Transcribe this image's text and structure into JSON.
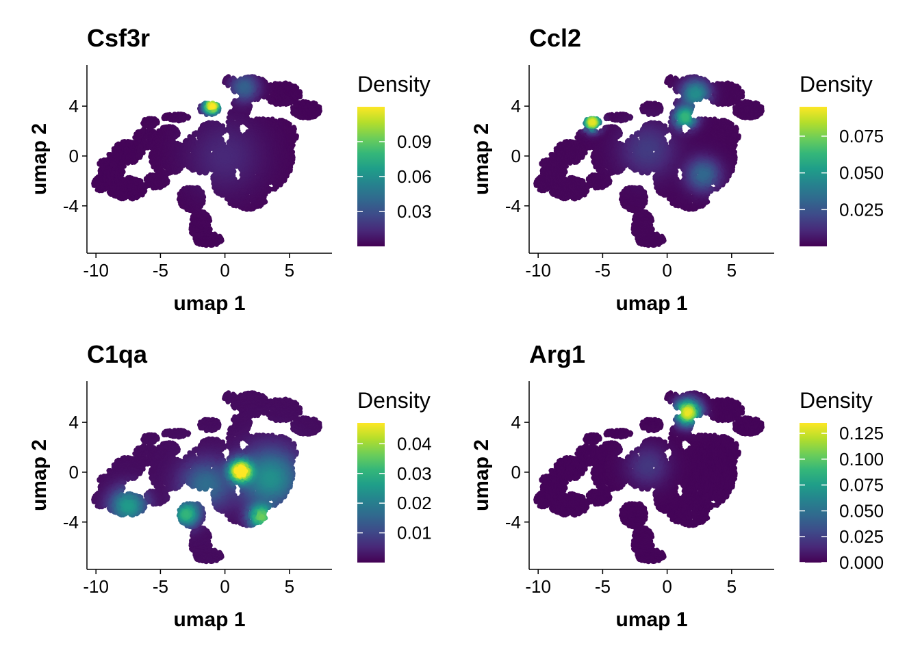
{
  "colors": {
    "viridis": [
      "#440154",
      "#482878",
      "#3e4a89",
      "#31688e",
      "#26828e",
      "#1f9e89",
      "#35b779",
      "#6ece58",
      "#b5de2b",
      "#fde725"
    ],
    "axis": "#000000"
  },
  "chart_data": [
    {
      "type": "scatter",
      "title": "Csf3r",
      "xlabel": "umap 1",
      "ylabel": "umap 2",
      "xlim": [
        -10.7,
        8.3
      ],
      "ylim": [
        -7.8,
        7.3
      ],
      "xticks": [
        -10,
        -5,
        0,
        5
      ],
      "xtick_labels": [
        "-10",
        "-5",
        "0",
        "5"
      ],
      "yticks": [
        4,
        0,
        -4
      ],
      "ytick_labels": [
        "4",
        "0",
        "-4"
      ],
      "legend": {
        "title": "Density",
        "position": "right",
        "min": 0,
        "max": 0.12,
        "ticks": [
          0.09,
          0.06,
          0.03
        ],
        "tick_labels": [
          "0.09",
          "0.06",
          "0.03"
        ]
      },
      "hotspots": [
        {
          "x": -1.0,
          "y": 4.0,
          "spread": 0.6,
          "value": 0.118
        },
        {
          "x": 1.5,
          "y": 5.5,
          "spread": 1.0,
          "value": 0.035
        },
        {
          "x": 0.0,
          "y": 0.0,
          "spread": 2.8,
          "value": 0.012
        }
      ]
    },
    {
      "type": "scatter",
      "title": "Ccl2",
      "xlabel": "umap 1",
      "ylabel": "umap 2",
      "xlim": [
        -10.7,
        8.3
      ],
      "ylim": [
        -7.8,
        7.3
      ],
      "xticks": [
        -10,
        -5,
        0,
        5
      ],
      "xtick_labels": [
        "-10",
        "-5",
        "0",
        "5"
      ],
      "yticks": [
        4,
        0,
        -4
      ],
      "ytick_labels": [
        "4",
        "0",
        "-4"
      ],
      "legend": {
        "title": "Density",
        "position": "right",
        "min": 0,
        "max": 0.095,
        "ticks": [
          0.075,
          0.05,
          0.025
        ],
        "tick_labels": [
          "0.075",
          "0.050",
          "0.025"
        ]
      },
      "hotspots": [
        {
          "x": -5.8,
          "y": 2.7,
          "spread": 0.6,
          "value": 0.09
        },
        {
          "x": 1.4,
          "y": 3.1,
          "spread": 0.8,
          "value": 0.06
        },
        {
          "x": 2.2,
          "y": 5.0,
          "spread": 1.0,
          "value": 0.045
        },
        {
          "x": 2.8,
          "y": -1.5,
          "spread": 1.2,
          "value": 0.03
        },
        {
          "x": -1.5,
          "y": 0.5,
          "spread": 2.0,
          "value": 0.015
        }
      ]
    },
    {
      "type": "scatter",
      "title": "C1qa",
      "xlabel": "umap 1",
      "ylabel": "umap 2",
      "xlim": [
        -10.7,
        8.3
      ],
      "ylim": [
        -7.8,
        7.3
      ],
      "xticks": [
        -10,
        -5,
        0,
        5
      ],
      "xtick_labels": [
        "-10",
        "-5",
        "0",
        "5"
      ],
      "yticks": [
        4,
        0,
        -4
      ],
      "ytick_labels": [
        "4",
        "0",
        "-4"
      ],
      "legend": {
        "title": "Density",
        "position": "right",
        "min": 0,
        "max": 0.047,
        "ticks": [
          0.04,
          0.03,
          0.02,
          0.01
        ],
        "tick_labels": [
          "0.04",
          "0.03",
          "0.02",
          "0.01"
        ]
      },
      "hotspots": [
        {
          "x": 1.2,
          "y": 0.1,
          "spread": 0.8,
          "value": 0.045
        },
        {
          "x": 2.8,
          "y": -3.6,
          "spread": 0.9,
          "value": 0.032
        },
        {
          "x": -3.0,
          "y": -3.4,
          "spread": 0.9,
          "value": 0.028
        },
        {
          "x": -7.5,
          "y": -2.7,
          "spread": 1.3,
          "value": 0.024
        },
        {
          "x": 3.5,
          "y": -0.5,
          "spread": 2.2,
          "value": 0.022
        },
        {
          "x": -1.5,
          "y": -1.0,
          "spread": 1.8,
          "value": 0.015
        }
      ]
    },
    {
      "type": "scatter",
      "title": "Arg1",
      "xlabel": "umap 1",
      "ylabel": "umap 2",
      "xlim": [
        -10.7,
        8.3
      ],
      "ylim": [
        -7.8,
        7.3
      ],
      "xticks": [
        -10,
        -5,
        0,
        5
      ],
      "xtick_labels": [
        "-10",
        "-5",
        "0",
        "5"
      ],
      "yticks": [
        4,
        0,
        -4
      ],
      "ytick_labels": [
        "4",
        "0",
        "-4"
      ],
      "legend": {
        "title": "Density",
        "position": "right",
        "min": 0,
        "max": 0.135,
        "ticks": [
          0.125,
          0.1,
          0.075,
          0.05,
          0.025,
          0.0
        ],
        "tick_labels": [
          "0.125",
          "0.100",
          "0.075",
          "0.050",
          "0.025",
          "0.000"
        ]
      },
      "hotspots": [
        {
          "x": 1.6,
          "y": 4.8,
          "spread": 0.9,
          "value": 0.13
        },
        {
          "x": -1.5,
          "y": 0.5,
          "spread": 1.5,
          "value": 0.02
        }
      ]
    }
  ]
}
